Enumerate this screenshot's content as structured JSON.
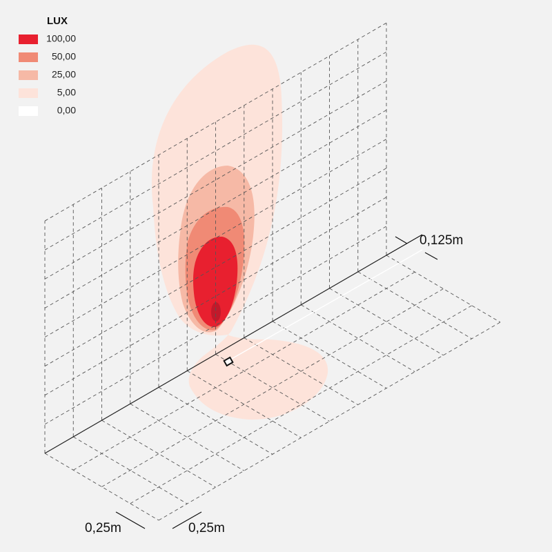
{
  "legend": {
    "title": "LUX",
    "items": [
      {
        "label": "100,00",
        "color": "#e8202f"
      },
      {
        "label": "50,00",
        "color": "#f08a75"
      },
      {
        "label": "25,00",
        "color": "#f6b9a6"
      },
      {
        "label": "5,00",
        "color": "#fde3da"
      },
      {
        "label": "0,00",
        "color": "#ffffff"
      }
    ]
  },
  "dimensions": {
    "height_offset": "0,125m",
    "floor_depth": "0,25m",
    "floor_width": "0,25m"
  }
}
